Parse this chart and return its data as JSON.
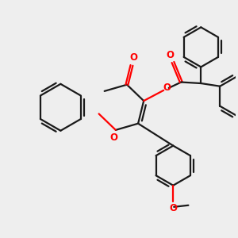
{
  "bg_color": "#eeeeee",
  "bond_color": "#1a1a1a",
  "oxygen_color": "#ff0000",
  "line_width": 1.6,
  "figsize": [
    3.0,
    3.0
  ],
  "dpi": 100,
  "xlim": [
    0,
    10
  ],
  "ylim": [
    0,
    10
  ]
}
